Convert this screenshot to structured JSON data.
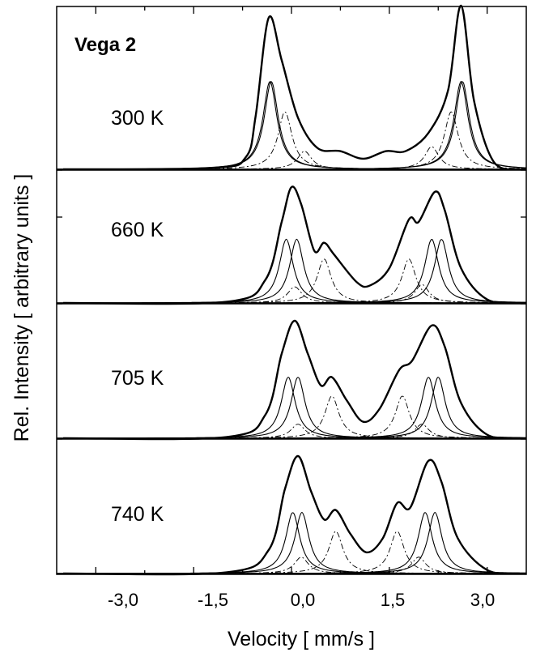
{
  "chart_data": {
    "type": "line",
    "title": "Vega 2",
    "xlabel": "Velocity [ mm/s ]",
    "ylabel": "Rel. Intensity [ arbitrary units ]",
    "xlim": [
      -3.6,
      3.6
    ],
    "x_ticks": [
      -3.0,
      -1.5,
      0.0,
      1.5,
      3.0
    ],
    "x_tick_labels": [
      "-3,0",
      "-1,5",
      "0,0",
      "1,5",
      "3,0"
    ],
    "grid": false,
    "panels": [
      {
        "temperature_label": "300 K",
        "total": [
          {
            "x": -3.5,
            "y": 0.0
          },
          {
            "x": -1.2,
            "y": 0.01
          },
          {
            "x": -0.7,
            "y": 0.08
          },
          {
            "x": -0.55,
            "y": 0.35
          },
          {
            "x": -0.35,
            "y": 1.0
          },
          {
            "x": -0.15,
            "y": 0.72
          },
          {
            "x": 0.1,
            "y": 0.34
          },
          {
            "x": 0.4,
            "y": 0.14
          },
          {
            "x": 0.75,
            "y": 0.12
          },
          {
            "x": 1.1,
            "y": 0.07
          },
          {
            "x": 1.45,
            "y": 0.12
          },
          {
            "x": 1.75,
            "y": 0.12
          },
          {
            "x": 2.1,
            "y": 0.24
          },
          {
            "x": 2.4,
            "y": 0.52
          },
          {
            "x": 2.6,
            "y": 1.08
          },
          {
            "x": 2.8,
            "y": 0.45
          },
          {
            "x": 3.1,
            "y": 0.05
          },
          {
            "x": 3.5,
            "y": 0.0
          }
        ],
        "components": [
          {
            "style": "solid",
            "center": -0.33,
            "area": 0.58
          },
          {
            "style": "solid",
            "center": -0.31,
            "area": 0.58
          },
          {
            "style": "solid",
            "center": 2.6,
            "area": 0.58
          },
          {
            "style": "solid",
            "center": 2.62,
            "area": 0.58
          },
          {
            "style": "dashdot",
            "center": -0.1,
            "area": 0.38
          },
          {
            "style": "dashdot",
            "center": 2.45,
            "area": 0.38
          },
          {
            "style": "dashdot",
            "center": 0.2,
            "area": 0.12
          },
          {
            "style": "dashdot",
            "center": 2.15,
            "area": 0.15
          }
        ]
      },
      {
        "temperature_label": "660 K",
        "total": [
          {
            "x": -3.5,
            "y": 0.0
          },
          {
            "x": -1.0,
            "y": 0.01
          },
          {
            "x": -0.4,
            "y": 0.2
          },
          {
            "x": -0.15,
            "y": 0.7
          },
          {
            "x": 0.0,
            "y": 1.0
          },
          {
            "x": 0.15,
            "y": 0.85
          },
          {
            "x": 0.35,
            "y": 0.45
          },
          {
            "x": 0.5,
            "y": 0.52
          },
          {
            "x": 0.65,
            "y": 0.42
          },
          {
            "x": 1.0,
            "y": 0.18
          },
          {
            "x": 1.2,
            "y": 0.15
          },
          {
            "x": 1.5,
            "y": 0.3
          },
          {
            "x": 1.8,
            "y": 0.72
          },
          {
            "x": 1.95,
            "y": 0.7
          },
          {
            "x": 2.2,
            "y": 0.96
          },
          {
            "x": 2.35,
            "y": 0.8
          },
          {
            "x": 2.6,
            "y": 0.3
          },
          {
            "x": 3.0,
            "y": 0.03
          },
          {
            "x": 3.5,
            "y": 0.0
          }
        ],
        "components": [
          {
            "style": "solid",
            "center": -0.08,
            "area": 0.55
          },
          {
            "style": "solid",
            "center": 0.08,
            "area": 0.55
          },
          {
            "style": "solid",
            "center": 2.15,
            "area": 0.55
          },
          {
            "style": "solid",
            "center": 2.3,
            "area": 0.55
          },
          {
            "style": "dashdot",
            "center": 0.5,
            "area": 0.38
          },
          {
            "style": "dashdot",
            "center": 1.8,
            "area": 0.38
          },
          {
            "style": "dashdot",
            "center": 0.05,
            "area": 0.14
          },
          {
            "style": "dashdot",
            "center": 2.0,
            "area": 0.16
          }
        ]
      },
      {
        "temperature_label": "705 K",
        "total": [
          {
            "x": -3.5,
            "y": 0.0
          },
          {
            "x": -1.0,
            "y": 0.01
          },
          {
            "x": -0.4,
            "y": 0.2
          },
          {
            "x": -0.15,
            "y": 0.72
          },
          {
            "x": 0.05,
            "y": 1.0
          },
          {
            "x": 0.25,
            "y": 0.72
          },
          {
            "x": 0.45,
            "y": 0.45
          },
          {
            "x": 0.62,
            "y": 0.52
          },
          {
            "x": 0.85,
            "y": 0.32
          },
          {
            "x": 1.1,
            "y": 0.14
          },
          {
            "x": 1.35,
            "y": 0.25
          },
          {
            "x": 1.65,
            "y": 0.58
          },
          {
            "x": 1.85,
            "y": 0.66
          },
          {
            "x": 2.15,
            "y": 0.96
          },
          {
            "x": 2.35,
            "y": 0.78
          },
          {
            "x": 2.6,
            "y": 0.3
          },
          {
            "x": 3.0,
            "y": 0.03
          },
          {
            "x": 3.5,
            "y": 0.0
          }
        ],
        "components": [
          {
            "style": "solid",
            "center": -0.05,
            "area": 0.52
          },
          {
            "style": "solid",
            "center": 0.1,
            "area": 0.52
          },
          {
            "style": "solid",
            "center": 2.1,
            "area": 0.52
          },
          {
            "style": "solid",
            "center": 2.25,
            "area": 0.52
          },
          {
            "style": "dashdot",
            "center": 0.62,
            "area": 0.36
          },
          {
            "style": "dashdot",
            "center": 1.7,
            "area": 0.36
          },
          {
            "style": "dashdot",
            "center": 0.1,
            "area": 0.12
          },
          {
            "style": "dashdot",
            "center": 2.0,
            "area": 0.12
          }
        ]
      },
      {
        "temperature_label": "740 K",
        "total": [
          {
            "x": -3.5,
            "y": 0.0
          },
          {
            "x": -1.0,
            "y": 0.01
          },
          {
            "x": -0.35,
            "y": 0.2
          },
          {
            "x": -0.1,
            "y": 0.72
          },
          {
            "x": 0.1,
            "y": 1.0
          },
          {
            "x": 0.3,
            "y": 0.7
          },
          {
            "x": 0.5,
            "y": 0.46
          },
          {
            "x": 0.68,
            "y": 0.54
          },
          {
            "x": 0.9,
            "y": 0.34
          },
          {
            "x": 1.15,
            "y": 0.18
          },
          {
            "x": 1.4,
            "y": 0.3
          },
          {
            "x": 1.62,
            "y": 0.6
          },
          {
            "x": 1.82,
            "y": 0.56
          },
          {
            "x": 2.1,
            "y": 0.96
          },
          {
            "x": 2.3,
            "y": 0.78
          },
          {
            "x": 2.55,
            "y": 0.3
          },
          {
            "x": 3.0,
            "y": 0.03
          },
          {
            "x": 3.5,
            "y": 0.0
          }
        ],
        "components": [
          {
            "style": "solid",
            "center": 0.02,
            "area": 0.52
          },
          {
            "style": "solid",
            "center": 0.16,
            "area": 0.52
          },
          {
            "style": "solid",
            "center": 2.05,
            "area": 0.52
          },
          {
            "style": "solid",
            "center": 2.2,
            "area": 0.52
          },
          {
            "style": "dashdot",
            "center": 0.68,
            "area": 0.36
          },
          {
            "style": "dashdot",
            "center": 1.62,
            "area": 0.36
          },
          {
            "style": "dashdot",
            "center": 0.15,
            "area": 0.14
          },
          {
            "style": "dashdot",
            "center": 1.95,
            "area": 0.14
          }
        ]
      }
    ]
  }
}
